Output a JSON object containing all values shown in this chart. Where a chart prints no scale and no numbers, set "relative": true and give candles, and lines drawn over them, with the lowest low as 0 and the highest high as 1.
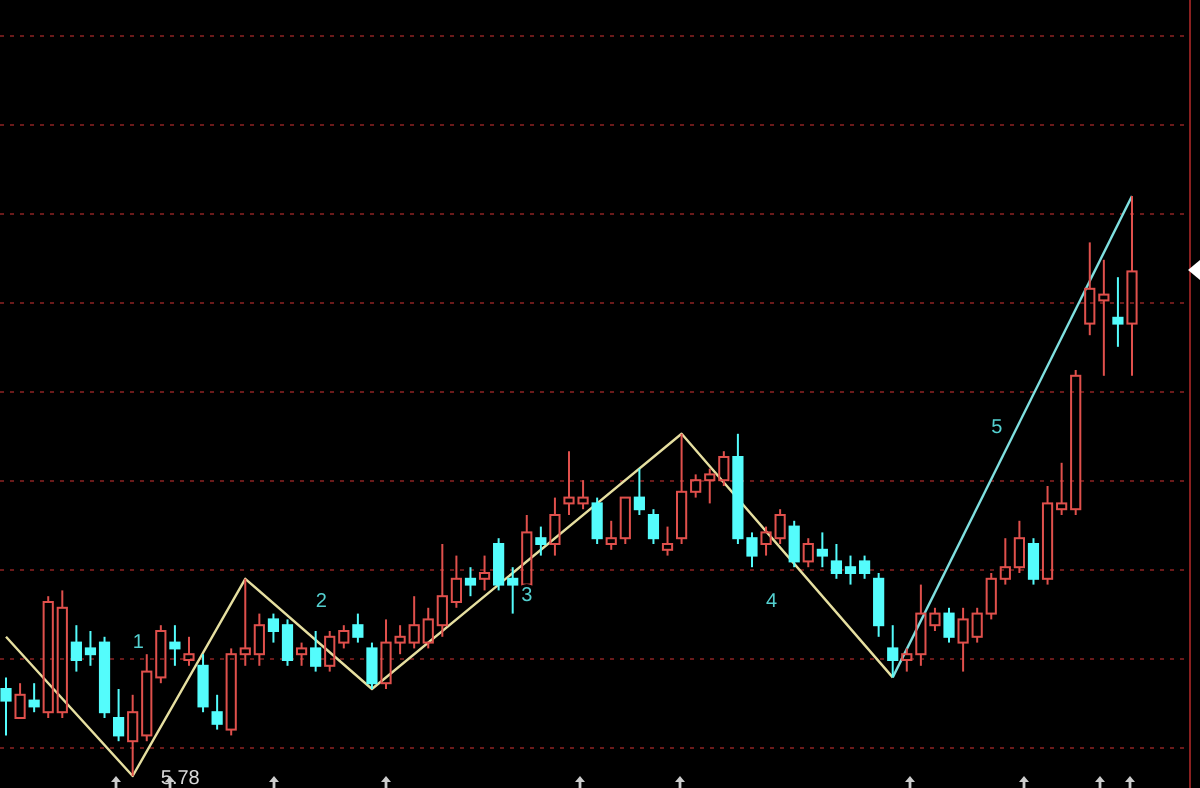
{
  "chart_data": {
    "type": "candlestick",
    "relative": true,
    "colors": [
      "#54fcfc",
      "#e0504c",
      "#54fcfc",
      "#e0504c",
      "#e0504c",
      "#54fcfc",
      "#54fcfc",
      "#54fcfc",
      "#54fcfc",
      "#e0504c",
      "#e0504c",
      "#e0504c",
      "#54fcfc",
      "#e0504c",
      "#54fcfc",
      "#54fcfc",
      "#e0504c",
      "#e0504c",
      "#e0504c",
      "#54fcfc",
      "#54fcfc",
      "#e0504c",
      "#54fcfc",
      "#e0504c",
      "#e0504c",
      "#54fcfc",
      "#54fcfc",
      "#e0504c",
      "#e0504c",
      "#e0504c",
      "#e0504c",
      "#e0504c",
      "#e0504c",
      "#54fcfc",
      "#e0504c",
      "#54fcfc",
      "#54fcfc",
      "#e0504c",
      "#54fcfc",
      "#e0504c",
      "#e0504c",
      "#e0504c",
      "#54fcfc",
      "#e0504c",
      "#e0504c",
      "#54fcfc",
      "#54fcfc",
      "#e0504c",
      "#e0504c",
      "#e0504c",
      "#e0504c",
      "#e0504c",
      "#54fcfc",
      "#54fcfc",
      "#e0504c",
      "#e0504c",
      "#54fcfc",
      "#e0504c",
      "#54fcfc",
      "#54fcfc",
      "#54fcfc",
      "#54fcfc",
      "#54fcfc",
      "#54fcfc",
      "#e0504c",
      "#e0504c",
      "#e0504c",
      "#54fcfc",
      "#e0504c",
      "#e0504c",
      "#e0504c",
      "#e0504c",
      "#e0504c",
      "#54fcfc",
      "#e0504c",
      "#e0504c",
      "#e0504c",
      "#e0504c",
      "#e0504c",
      "#54fcfc",
      "#e0504c"
    ],
    "categories": [
      null,
      null,
      null,
      null,
      null,
      null,
      null,
      null,
      null,
      null,
      null,
      null,
      null,
      null,
      null,
      null,
      null,
      null,
      null,
      null,
      null,
      null,
      null,
      null,
      null,
      null,
      null,
      null,
      null,
      null,
      null,
      null,
      null,
      null,
      null,
      null,
      null,
      null,
      null,
      null,
      null,
      null,
      null,
      null,
      null,
      null,
      null,
      null,
      null,
      null,
      null,
      null,
      null,
      null,
      null,
      null,
      null,
      null,
      null,
      null,
      null,
      null,
      null,
      null,
      null,
      null,
      null,
      null,
      null,
      null,
      null,
      null,
      null,
      null,
      null,
      null,
      null,
      null,
      null,
      null,
      null
    ],
    "ohlc": [
      [
        0.15,
        0.17,
        0.07,
        0.13
      ],
      [
        0.1,
        0.16,
        0.1,
        0.14
      ],
      [
        0.13,
        0.16,
        0.11,
        0.12
      ],
      [
        0.11,
        0.31,
        0.1,
        0.3
      ],
      [
        0.11,
        0.32,
        0.1,
        0.29
      ],
      [
        0.23,
        0.26,
        0.18,
        0.2
      ],
      [
        0.22,
        0.25,
        0.19,
        0.21
      ],
      [
        0.23,
        0.24,
        0.1,
        0.11
      ],
      [
        0.1,
        0.15,
        0.06,
        0.07
      ],
      [
        0.06,
        0.14,
        0,
        0.11
      ],
      [
        0.07,
        0.21,
        0.06,
        0.18
      ],
      [
        0.17,
        0.26,
        0.16,
        0.25
      ],
      [
        0.23,
        0.26,
        0.19,
        0.22
      ],
      [
        0.2,
        0.24,
        0.19,
        0.21
      ],
      [
        0.19,
        0.21,
        0.11,
        0.12
      ],
      [
        0.11,
        0.14,
        0.08,
        0.09
      ],
      [
        0.08,
        0.22,
        0.07,
        0.21
      ],
      [
        0.21,
        0.34,
        0.19,
        0.22
      ],
      [
        0.21,
        0.28,
        0.19,
        0.26
      ],
      [
        0.27,
        0.28,
        0.23,
        0.25
      ],
      [
        0.26,
        0.27,
        0.19,
        0.2
      ],
      [
        0.21,
        0.23,
        0.19,
        0.22
      ],
      [
        0.22,
        0.25,
        0.18,
        0.19
      ],
      [
        0.19,
        0.25,
        0.18,
        0.24
      ],
      [
        0.23,
        0.26,
        0.22,
        0.25
      ],
      [
        0.26,
        0.28,
        0.23,
        0.24
      ],
      [
        0.22,
        0.23,
        0.15,
        0.16
      ],
      [
        0.16,
        0.27,
        0.15,
        0.23
      ],
      [
        0.23,
        0.26,
        0.21,
        0.24
      ],
      [
        0.23,
        0.31,
        0.22,
        0.26
      ],
      [
        0.23,
        0.29,
        0.22,
        0.27
      ],
      [
        0.26,
        0.4,
        0.24,
        0.31
      ],
      [
        0.3,
        0.38,
        0.29,
        0.34
      ],
      [
        0.34,
        0.36,
        0.31,
        0.33
      ],
      [
        0.34,
        0.38,
        0.32,
        0.35
      ],
      [
        0.4,
        0.41,
        0.32,
        0.33
      ],
      [
        0.34,
        0.36,
        0.28,
        0.33
      ],
      [
        0.33,
        0.45,
        0.32,
        0.42
      ],
      [
        0.41,
        0.43,
        0.38,
        0.4
      ],
      [
        0.4,
        0.48,
        0.38,
        0.45
      ],
      [
        0.47,
        0.56,
        0.45,
        0.48
      ],
      [
        0.47,
        0.51,
        0.46,
        0.48
      ],
      [
        0.47,
        0.48,
        0.4,
        0.41
      ],
      [
        0.4,
        0.44,
        0.39,
        0.41
      ],
      [
        0.41,
        0.48,
        0.4,
        0.48
      ],
      [
        0.48,
        0.53,
        0.45,
        0.46
      ],
      [
        0.45,
        0.46,
        0.4,
        0.41
      ],
      [
        0.39,
        0.43,
        0.38,
        0.4
      ],
      [
        0.41,
        0.59,
        0.4,
        0.49
      ],
      [
        0.49,
        0.52,
        0.48,
        0.51
      ],
      [
        0.51,
        0.53,
        0.47,
        0.52
      ],
      [
        0.51,
        0.56,
        0.5,
        0.55
      ],
      [
        0.55,
        0.59,
        0.4,
        0.41
      ],
      [
        0.41,
        0.42,
        0.36,
        0.38
      ],
      [
        0.4,
        0.43,
        0.38,
        0.42
      ],
      [
        0.41,
        0.46,
        0.4,
        0.45
      ],
      [
        0.43,
        0.44,
        0.36,
        0.37
      ],
      [
        0.37,
        0.41,
        0.36,
        0.4
      ],
      [
        0.39,
        0.42,
        0.36,
        0.38
      ],
      [
        0.37,
        0.4,
        0.34,
        0.35
      ],
      [
        0.36,
        0.38,
        0.33,
        0.35
      ],
      [
        0.37,
        0.38,
        0.34,
        0.35
      ],
      [
        0.34,
        0.35,
        0.24,
        0.26
      ],
      [
        0.22,
        0.26,
        0.17,
        0.2
      ],
      [
        0.2,
        0.22,
        0.18,
        0.21
      ],
      [
        0.21,
        0.33,
        0.19,
        0.28
      ],
      [
        0.26,
        0.29,
        0.25,
        0.28
      ],
      [
        0.28,
        0.29,
        0.23,
        0.24
      ],
      [
        0.23,
        0.29,
        0.18,
        0.27
      ],
      [
        0.24,
        0.29,
        0.23,
        0.28
      ],
      [
        0.28,
        0.35,
        0.27,
        0.34
      ],
      [
        0.34,
        0.41,
        0.33,
        0.36
      ],
      [
        0.36,
        0.44,
        0.35,
        0.41
      ],
      [
        0.4,
        0.41,
        0.33,
        0.34
      ],
      [
        0.34,
        0.5,
        0.33,
        0.47
      ],
      [
        0.46,
        0.54,
        0.45,
        0.47
      ],
      [
        0.46,
        0.7,
        0.45,
        0.69
      ],
      [
        0.78,
        0.92,
        0.76,
        0.84
      ],
      [
        0.82,
        0.89,
        0.69,
        0.83
      ],
      [
        0.79,
        0.86,
        0.74,
        0.78
      ],
      [
        0.78,
        1,
        0.69,
        0.87
      ]
    ],
    "series": [
      {
        "type": "line",
        "color": "#e6dfa0",
        "values": [
          0.24,
          null,
          null,
          null,
          null,
          null,
          null,
          null,
          null,
          0,
          null,
          null,
          null,
          null,
          null,
          null,
          null,
          0.34,
          null,
          null,
          null,
          null,
          null,
          null,
          null,
          null,
          0.15,
          null,
          null,
          null,
          null,
          null,
          null,
          null,
          null,
          null,
          null,
          null,
          null,
          null,
          null,
          null,
          null,
          null,
          null,
          null,
          null,
          null,
          0.59,
          null,
          null,
          null,
          null,
          null,
          null,
          null,
          null,
          null,
          null,
          null,
          null,
          null,
          null,
          0.17,
          null,
          null,
          null,
          null,
          null,
          null,
          null,
          null,
          null,
          null,
          null,
          null,
          null,
          null,
          null,
          null,
          null
        ]
      },
      {
        "type": "line",
        "color": "#7fe0e0",
        "values": [
          null,
          null,
          null,
          null,
          null,
          null,
          null,
          null,
          null,
          null,
          null,
          null,
          null,
          null,
          null,
          null,
          null,
          null,
          null,
          null,
          null,
          null,
          null,
          null,
          null,
          null,
          null,
          null,
          null,
          null,
          null,
          null,
          null,
          null,
          null,
          null,
          null,
          null,
          null,
          null,
          null,
          null,
          null,
          null,
          null,
          null,
          null,
          null,
          null,
          null,
          null,
          null,
          null,
          null,
          null,
          null,
          null,
          null,
          null,
          null,
          null,
          null,
          null,
          0.17,
          null,
          null,
          null,
          null,
          null,
          null,
          null,
          null,
          null,
          null,
          null,
          null,
          null,
          null,
          null,
          null,
          1
        ]
      }
    ],
    "annotations": [
      "1",
      "2",
      "3",
      "4",
      "5",
      "5.78"
    ]
  }
}
